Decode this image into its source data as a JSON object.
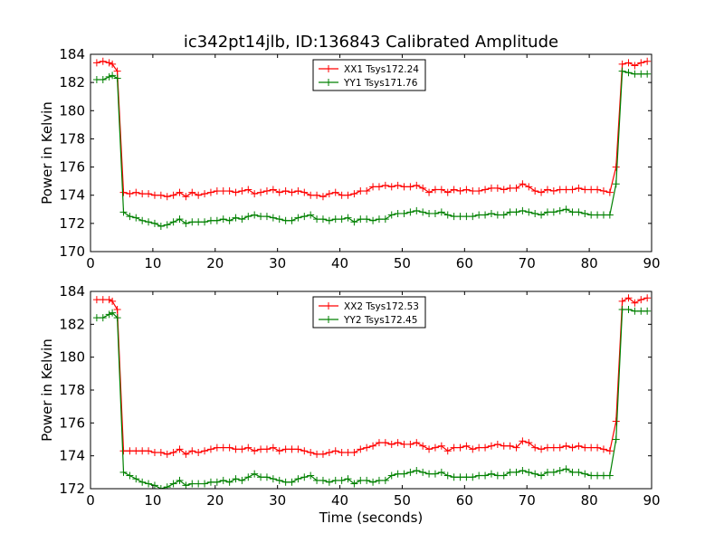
{
  "figure": {
    "title": "ic342pt14jlb, ID:136843 Calibrated Amplitude",
    "xlabel": "Time (seconds)"
  },
  "chart_data": [
    {
      "type": "line",
      "ylabel": "Power in Kelvin",
      "xlim": [
        0,
        90
      ],
      "ylim": [
        170,
        184
      ],
      "xticks": [
        0,
        10,
        20,
        30,
        40,
        50,
        60,
        70,
        80,
        90
      ],
      "yticks": [
        170,
        172,
        174,
        176,
        178,
        180,
        182,
        184
      ],
      "grid": false,
      "legend_position": "top-center",
      "series": [
        {
          "name": "XX1 Tsys172.24",
          "color": "#ff0000",
          "x": [
            1.0,
            2.0,
            3.0,
            3.5,
            4.3,
            5.3,
            6.3,
            7.3,
            8.3,
            9.3,
            10.3,
            11.3,
            12.3,
            13.3,
            14.3,
            15.3,
            16.3,
            17.3,
            18.3,
            19.3,
            20.3,
            21.3,
            22.3,
            23.3,
            24.3,
            25.3,
            26.3,
            27.3,
            28.3,
            29.3,
            30.3,
            31.3,
            32.3,
            33.3,
            34.3,
            35.3,
            36.3,
            37.3,
            38.3,
            39.3,
            40.3,
            41.3,
            42.3,
            43.3,
            44.3,
            45.3,
            46.3,
            47.3,
            48.3,
            49.3,
            50.3,
            51.3,
            52.3,
            53.3,
            54.3,
            55.3,
            56.3,
            57.3,
            58.3,
            59.3,
            60.3,
            61.3,
            62.3,
            63.3,
            64.3,
            65.3,
            66.3,
            67.3,
            68.3,
            69.3,
            70.3,
            71.3,
            72.3,
            73.3,
            74.3,
            75.3,
            76.3,
            77.3,
            78.3,
            79.3,
            80.3,
            81.3,
            82.3,
            83.3,
            84.3,
            85.3,
            86.3,
            87.3,
            88.3,
            89.3
          ],
          "y": [
            183.4,
            183.5,
            183.4,
            183.3,
            182.8,
            174.2,
            174.1,
            174.2,
            174.1,
            174.1,
            174.0,
            174.0,
            173.9,
            174.0,
            174.2,
            173.9,
            174.2,
            174.0,
            174.1,
            174.2,
            174.3,
            174.3,
            174.3,
            174.2,
            174.3,
            174.4,
            174.1,
            174.2,
            174.3,
            174.4,
            174.2,
            174.3,
            174.2,
            174.3,
            174.2,
            174.0,
            174.0,
            173.9,
            174.1,
            174.2,
            174.0,
            174.0,
            174.1,
            174.3,
            174.3,
            174.6,
            174.6,
            174.7,
            174.6,
            174.7,
            174.6,
            174.6,
            174.7,
            174.5,
            174.2,
            174.4,
            174.4,
            174.2,
            174.4,
            174.3,
            174.4,
            174.3,
            174.3,
            174.4,
            174.5,
            174.5,
            174.4,
            174.5,
            174.5,
            174.8,
            174.6,
            174.3,
            174.2,
            174.4,
            174.3,
            174.4,
            174.4,
            174.4,
            174.5,
            174.4,
            174.4,
            174.4,
            174.3,
            174.2,
            176.0,
            183.3,
            183.4,
            183.2,
            183.4,
            183.5
          ]
        },
        {
          "name": "YY1 Tsys171.76",
          "color": "#008000",
          "x": [
            1.0,
            2.0,
            3.0,
            3.5,
            4.3,
            5.3,
            6.3,
            7.3,
            8.3,
            9.3,
            10.3,
            11.3,
            12.3,
            13.3,
            14.3,
            15.3,
            16.3,
            17.3,
            18.3,
            19.3,
            20.3,
            21.3,
            22.3,
            23.3,
            24.3,
            25.3,
            26.3,
            27.3,
            28.3,
            29.3,
            30.3,
            31.3,
            32.3,
            33.3,
            34.3,
            35.3,
            36.3,
            37.3,
            38.3,
            39.3,
            40.3,
            41.3,
            42.3,
            43.3,
            44.3,
            45.3,
            46.3,
            47.3,
            48.3,
            49.3,
            50.3,
            51.3,
            52.3,
            53.3,
            54.3,
            55.3,
            56.3,
            57.3,
            58.3,
            59.3,
            60.3,
            61.3,
            62.3,
            63.3,
            64.3,
            65.3,
            66.3,
            67.3,
            68.3,
            69.3,
            70.3,
            71.3,
            72.3,
            73.3,
            74.3,
            75.3,
            76.3,
            77.3,
            78.3,
            79.3,
            80.3,
            81.3,
            82.3,
            83.3,
            84.3,
            85.3,
            86.3,
            87.3,
            88.3,
            89.3
          ],
          "y": [
            182.2,
            182.2,
            182.4,
            182.5,
            182.3,
            172.8,
            172.5,
            172.4,
            172.2,
            172.1,
            172.0,
            171.8,
            171.9,
            172.1,
            172.3,
            172.0,
            172.1,
            172.1,
            172.1,
            172.2,
            172.2,
            172.3,
            172.2,
            172.4,
            172.3,
            172.5,
            172.6,
            172.5,
            172.5,
            172.4,
            172.3,
            172.2,
            172.2,
            172.4,
            172.5,
            172.6,
            172.3,
            172.3,
            172.2,
            172.3,
            172.3,
            172.4,
            172.1,
            172.3,
            172.3,
            172.2,
            172.3,
            172.3,
            172.6,
            172.7,
            172.7,
            172.8,
            172.9,
            172.8,
            172.7,
            172.7,
            172.8,
            172.6,
            172.5,
            172.5,
            172.5,
            172.5,
            172.6,
            172.6,
            172.7,
            172.6,
            172.6,
            172.8,
            172.8,
            172.9,
            172.8,
            172.7,
            172.6,
            172.8,
            172.8,
            172.9,
            173.0,
            172.8,
            172.8,
            172.7,
            172.6,
            172.6,
            172.6,
            172.6,
            174.8,
            182.8,
            182.7,
            182.6,
            182.6,
            182.6
          ]
        }
      ]
    },
    {
      "type": "line",
      "ylabel": "Power in Kelvin",
      "xlabel": "Time (seconds)",
      "xlim": [
        0,
        90
      ],
      "ylim": [
        172,
        184
      ],
      "xticks": [
        0,
        10,
        20,
        30,
        40,
        50,
        60,
        70,
        80,
        90
      ],
      "yticks": [
        172,
        174,
        176,
        178,
        180,
        182,
        184
      ],
      "grid": false,
      "legend_position": "top-center",
      "series": [
        {
          "name": "XX2 Tsys172.53",
          "color": "#ff0000",
          "x": [
            1.0,
            2.0,
            3.0,
            3.5,
            4.3,
            5.3,
            6.3,
            7.3,
            8.3,
            9.3,
            10.3,
            11.3,
            12.3,
            13.3,
            14.3,
            15.3,
            16.3,
            17.3,
            18.3,
            19.3,
            20.3,
            21.3,
            22.3,
            23.3,
            24.3,
            25.3,
            26.3,
            27.3,
            28.3,
            29.3,
            30.3,
            31.3,
            32.3,
            33.3,
            34.3,
            35.3,
            36.3,
            37.3,
            38.3,
            39.3,
            40.3,
            41.3,
            42.3,
            43.3,
            44.3,
            45.3,
            46.3,
            47.3,
            48.3,
            49.3,
            50.3,
            51.3,
            52.3,
            53.3,
            54.3,
            55.3,
            56.3,
            57.3,
            58.3,
            59.3,
            60.3,
            61.3,
            62.3,
            63.3,
            64.3,
            65.3,
            66.3,
            67.3,
            68.3,
            69.3,
            70.3,
            71.3,
            72.3,
            73.3,
            74.3,
            75.3,
            76.3,
            77.3,
            78.3,
            79.3,
            80.3,
            81.3,
            82.3,
            83.3,
            84.3,
            85.3,
            86.3,
            87.3,
            88.3,
            89.3
          ],
          "y": [
            183.5,
            183.5,
            183.5,
            183.4,
            182.9,
            174.3,
            174.3,
            174.3,
            174.3,
            174.3,
            174.2,
            174.2,
            174.1,
            174.2,
            174.4,
            174.1,
            174.3,
            174.2,
            174.3,
            174.4,
            174.5,
            174.5,
            174.5,
            174.4,
            174.4,
            174.5,
            174.3,
            174.4,
            174.4,
            174.5,
            174.3,
            174.4,
            174.4,
            174.4,
            174.3,
            174.2,
            174.1,
            174.1,
            174.2,
            174.3,
            174.2,
            174.2,
            174.2,
            174.4,
            174.5,
            174.6,
            174.8,
            174.8,
            174.7,
            174.8,
            174.7,
            174.7,
            174.8,
            174.6,
            174.4,
            174.5,
            174.6,
            174.3,
            174.5,
            174.5,
            174.6,
            174.4,
            174.5,
            174.5,
            174.6,
            174.7,
            174.6,
            174.6,
            174.5,
            174.9,
            174.8,
            174.5,
            174.4,
            174.5,
            174.5,
            174.5,
            174.6,
            174.5,
            174.6,
            174.5,
            174.5,
            174.5,
            174.4,
            174.3,
            176.1,
            183.4,
            183.6,
            183.3,
            183.5,
            183.6
          ]
        },
        {
          "name": "YY2 Tsys172.45",
          "color": "#008000",
          "x": [
            1.0,
            2.0,
            3.0,
            3.5,
            4.3,
            5.3,
            6.3,
            7.3,
            8.3,
            9.3,
            10.3,
            11.3,
            12.3,
            13.3,
            14.3,
            15.3,
            16.3,
            17.3,
            18.3,
            19.3,
            20.3,
            21.3,
            22.3,
            23.3,
            24.3,
            25.3,
            26.3,
            27.3,
            28.3,
            29.3,
            30.3,
            31.3,
            32.3,
            33.3,
            34.3,
            35.3,
            36.3,
            37.3,
            38.3,
            39.3,
            40.3,
            41.3,
            42.3,
            43.3,
            44.3,
            45.3,
            46.3,
            47.3,
            48.3,
            49.3,
            50.3,
            51.3,
            52.3,
            53.3,
            54.3,
            55.3,
            56.3,
            57.3,
            58.3,
            59.3,
            60.3,
            61.3,
            62.3,
            63.3,
            64.3,
            65.3,
            66.3,
            67.3,
            68.3,
            69.3,
            70.3,
            71.3,
            72.3,
            73.3,
            74.3,
            75.3,
            76.3,
            77.3,
            78.3,
            79.3,
            80.3,
            81.3,
            82.3,
            83.3,
            84.3,
            85.3,
            86.3,
            87.3,
            88.3,
            89.3
          ],
          "y": [
            182.4,
            182.4,
            182.6,
            182.7,
            182.4,
            173.0,
            172.8,
            172.6,
            172.4,
            172.3,
            172.2,
            172.0,
            172.1,
            172.3,
            172.5,
            172.2,
            172.3,
            172.3,
            172.3,
            172.4,
            172.4,
            172.5,
            172.4,
            172.6,
            172.5,
            172.7,
            172.9,
            172.7,
            172.7,
            172.6,
            172.5,
            172.4,
            172.4,
            172.6,
            172.7,
            172.8,
            172.5,
            172.5,
            172.4,
            172.5,
            172.5,
            172.6,
            172.3,
            172.5,
            172.5,
            172.4,
            172.5,
            172.5,
            172.8,
            172.9,
            172.9,
            173.0,
            173.1,
            173.0,
            172.9,
            172.9,
            173.0,
            172.8,
            172.7,
            172.7,
            172.7,
            172.7,
            172.8,
            172.8,
            172.9,
            172.8,
            172.8,
            173.0,
            173.0,
            173.1,
            173.0,
            172.9,
            172.8,
            173.0,
            173.0,
            173.1,
            173.2,
            173.0,
            173.0,
            172.9,
            172.8,
            172.8,
            172.8,
            172.8,
            175.0,
            182.9,
            182.9,
            182.8,
            182.8,
            182.8
          ]
        }
      ]
    }
  ]
}
